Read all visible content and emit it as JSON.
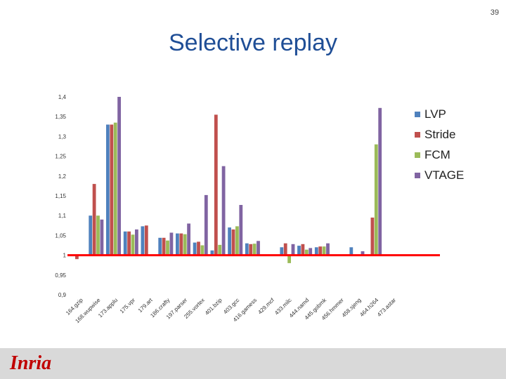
{
  "slide": {
    "number": "39",
    "title": "Selective replay",
    "logo_text": "Inria"
  },
  "colors": {
    "LVP": "#4f81bd",
    "Stride": "#c0504d",
    "FCM": "#9bbb59",
    "VTAGE": "#8064a2",
    "baseline": "#ff0000"
  },
  "chart_data": {
    "type": "bar",
    "title": "",
    "xlabel": "",
    "ylabel": "",
    "ylim": [
      0.9,
      1.4
    ],
    "yticks": [
      "0,9",
      "0,95",
      "1",
      "1,05",
      "1,1",
      "1,15",
      "1,2",
      "1,25",
      "1,3",
      "1,35",
      "1,4"
    ],
    "grid": false,
    "legend_position": "right",
    "baseline": 1,
    "categories": [
      "164.gzip",
      "168.wupwise",
      "173.applu",
      "175.vpr",
      "179.art",
      "186.crafty",
      "197.parser",
      "255.vortex",
      "401.bzip",
      "403.gcc",
      "416.gamess",
      "429.mcf",
      "433.milc",
      "444.namd",
      "445.gobmk",
      "456.hmmer",
      "458.sjeng",
      "464.h264",
      "473.astar"
    ],
    "series": [
      {
        "name": "LVP",
        "values": [
          1.0,
          1.1,
          1.33,
          1.06,
          1.073,
          1.044,
          1.055,
          1.032,
          1.012,
          1.07,
          1.03,
          1.0,
          1.02,
          1.024,
          1.02,
          1.0,
          1.02,
          1.0,
          1.0
        ]
      },
      {
        "name": "Stride",
        "values": [
          0.99,
          1.18,
          1.33,
          1.06,
          1.075,
          1.044,
          1.055,
          1.034,
          1.355,
          1.065,
          1.028,
          1.0,
          1.03,
          1.028,
          1.022,
          1.0,
          1.0,
          1.095,
          1.0
        ]
      },
      {
        "name": "FCM",
        "values": [
          1.0,
          1.1,
          1.335,
          1.052,
          1.0,
          1.037,
          1.053,
          1.025,
          1.026,
          1.073,
          1.029,
          1.0,
          0.98,
          1.014,
          1.022,
          1.0,
          1.0,
          1.28,
          1.0
        ]
      },
      {
        "name": "VTAGE",
        "values": [
          1.0,
          1.09,
          1.4,
          1.065,
          1.0,
          1.057,
          1.08,
          1.152,
          1.225,
          1.127,
          1.036,
          1.0,
          1.028,
          1.018,
          1.03,
          1.0,
          1.01,
          1.372,
          1.0
        ]
      }
    ]
  }
}
